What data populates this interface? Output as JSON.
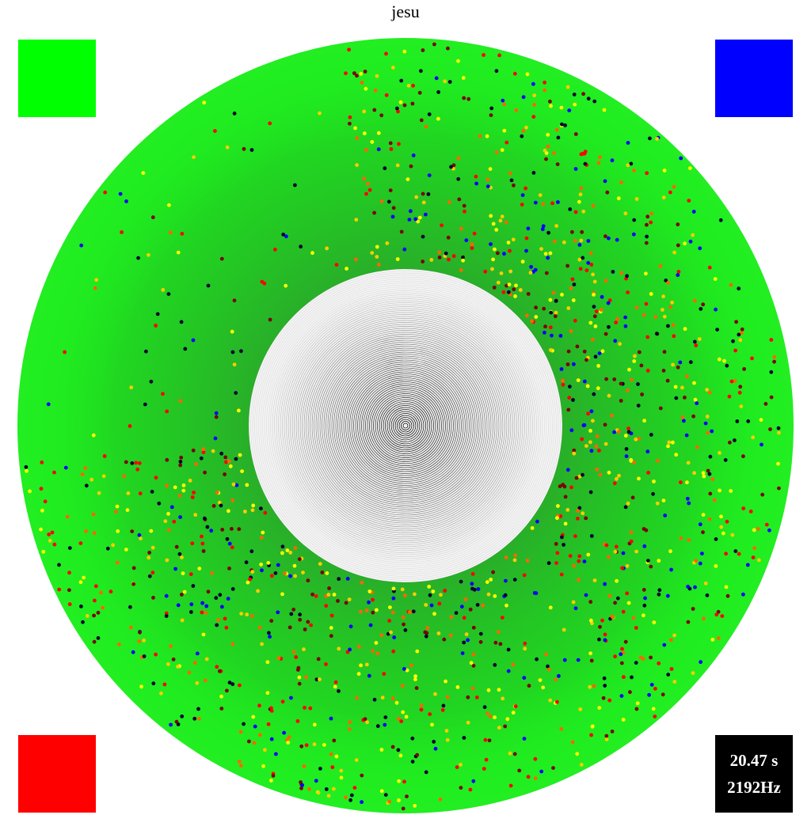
{
  "header": {
    "title": "jesu"
  },
  "status": {
    "time": "20.47 s",
    "frequency": "2192Hz"
  }
}
